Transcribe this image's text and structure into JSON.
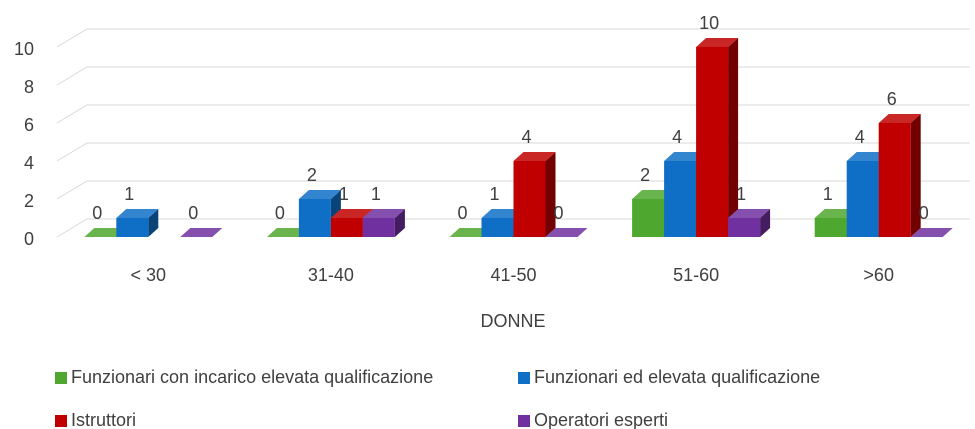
{
  "chart_data": {
    "type": "bar3d",
    "categories": [
      "< 30",
      "31-40",
      "41-50",
      "51-60",
      ">60"
    ],
    "xlabel": "DONNE",
    "series": [
      {
        "name": "Funzionari con incarico elevata qualificazione",
        "color": "#4ea72e",
        "values": [
          0,
          0,
          0,
          2,
          1
        ]
      },
      {
        "name": "Funzionari ed elevata qualificazione",
        "color": "#0f6fc6",
        "values": [
          1,
          2,
          1,
          4,
          4
        ]
      },
      {
        "name": "Istruttori",
        "color": "#c00000",
        "values": [
          null,
          1,
          4,
          10,
          6
        ]
      },
      {
        "name": "Operatori esperti",
        "color": "#7030a0",
        "values": [
          0,
          1,
          0,
          1,
          0
        ]
      }
    ],
    "ylim": [
      0,
      10
    ],
    "yticks": [
      0,
      2,
      4,
      6,
      8,
      10
    ],
    "grid": true,
    "legend": "bottom"
  }
}
